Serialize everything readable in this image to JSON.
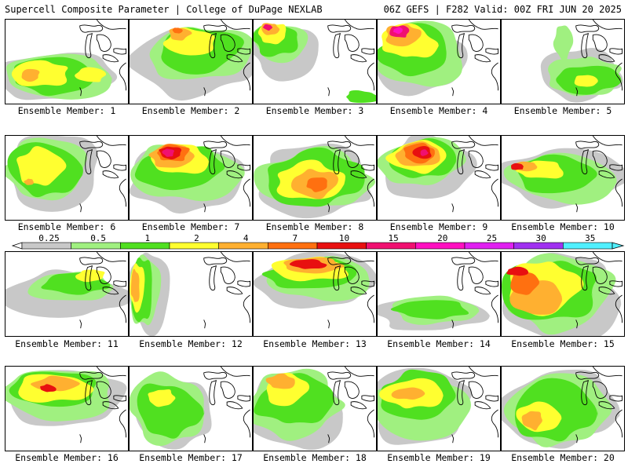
{
  "header": {
    "title": "Supercell Composite Parameter | College of DuPage NEXLAB",
    "run_info": "06Z GEFS | F282 Valid: 00Z FRI JUN 20 2025"
  },
  "colorbar": {
    "levels": [
      "0.25",
      "0.5",
      "1",
      "2",
      "4",
      "7",
      "10",
      "15",
      "20",
      "25",
      "30",
      "35"
    ],
    "colors": [
      "#c8c8c8",
      "#a0f080",
      "#50e020",
      "#ffff30",
      "#ffb030",
      "#ff7010",
      "#e81010",
      "#f01070",
      "#ff10c0",
      "#e020f0",
      "#a030f0",
      "#50f0ff"
    ]
  },
  "members": [
    {
      "caption": "Ensemble Member: 1"
    },
    {
      "caption": "Ensemble Member: 2"
    },
    {
      "caption": "Ensemble Member: 3"
    },
    {
      "caption": "Ensemble Member: 4"
    },
    {
      "caption": "Ensemble Member: 5"
    },
    {
      "caption": "Ensemble Member: 6"
    },
    {
      "caption": "Ensemble Member: 7"
    },
    {
      "caption": "Ensemble Member: 8"
    },
    {
      "caption": "Ensemble Member: 9"
    },
    {
      "caption": "Ensemble Member: 10"
    },
    {
      "caption": "Ensemble Member: 11"
    },
    {
      "caption": "Ensemble Member: 12"
    },
    {
      "caption": "Ensemble Member: 13"
    },
    {
      "caption": "Ensemble Member: 14"
    },
    {
      "caption": "Ensemble Member: 15"
    },
    {
      "caption": "Ensemble Member: 16"
    },
    {
      "caption": "Ensemble Member: 17"
    },
    {
      "caption": "Ensemble Member: 18"
    },
    {
      "caption": "Ensemble Member: 19"
    },
    {
      "caption": "Ensemble Member: 20"
    }
  ]
}
